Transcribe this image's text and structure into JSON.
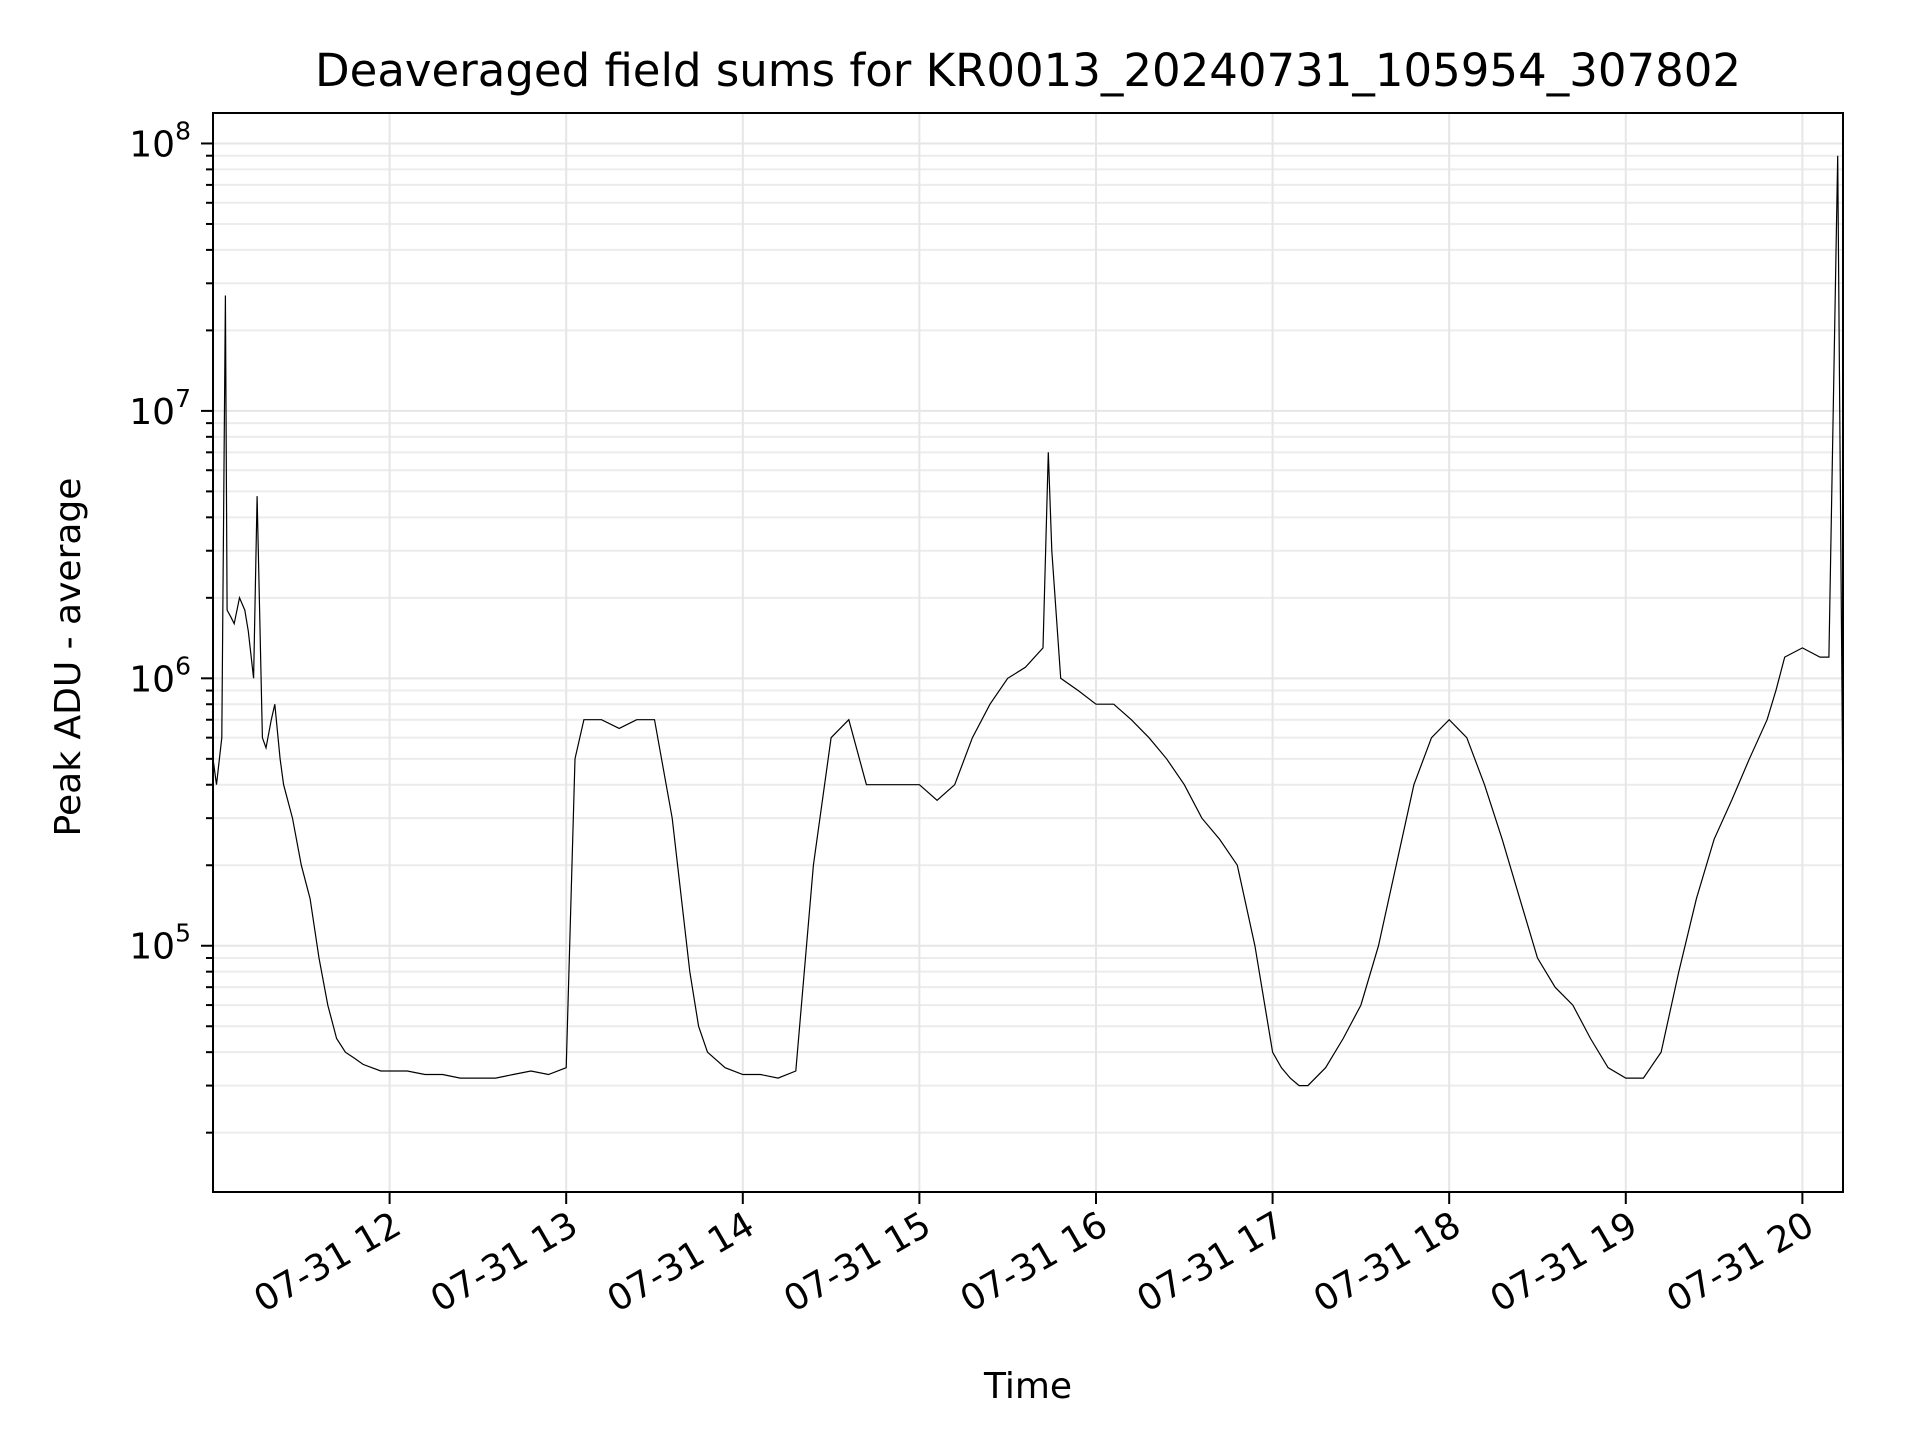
{
  "chart_data": {
    "type": "line",
    "title": "Deaveraged field sums for KR0013_20240731_105954_307802",
    "xlabel": "Time",
    "ylabel": "Peak ADU - average",
    "yscale": "log",
    "ylim": [
      12000,
      130000000
    ],
    "xlim": [
      11.0,
      20.23
    ],
    "grid": true,
    "x_ticks": [
      {
        "value": 12,
        "label": "07-31 12"
      },
      {
        "value": 13,
        "label": "07-31 13"
      },
      {
        "value": 14,
        "label": "07-31 14"
      },
      {
        "value": 15,
        "label": "07-31 15"
      },
      {
        "value": 16,
        "label": "07-31 16"
      },
      {
        "value": 17,
        "label": "07-31 17"
      },
      {
        "value": 18,
        "label": "07-31 18"
      },
      {
        "value": 19,
        "label": "07-31 19"
      },
      {
        "value": 20,
        "label": "07-31 20"
      }
    ],
    "y_ticks": [
      {
        "value": 100000,
        "base": "10",
        "exp": "5"
      },
      {
        "value": 1000000,
        "base": "10",
        "exp": "6"
      },
      {
        "value": 10000000,
        "base": "10",
        "exp": "7"
      },
      {
        "value": 100000000,
        "base": "10",
        "exp": "8"
      }
    ],
    "series_color": "#000000",
    "series": [
      {
        "x_unit": "hour of 2024-07-31",
        "x": [
          11.0,
          11.02,
          11.05,
          11.07,
          11.08,
          11.1,
          11.12,
          11.15,
          11.18,
          11.2,
          11.23,
          11.25,
          11.28,
          11.3,
          11.33,
          11.35,
          11.38,
          11.4,
          11.45,
          11.5,
          11.55,
          11.6,
          11.65,
          11.7,
          11.75,
          11.8,
          11.85,
          11.9,
          11.95,
          12.0,
          12.1,
          12.2,
          12.3,
          12.4,
          12.5,
          12.6,
          12.7,
          12.8,
          12.9,
          13.0,
          13.05,
          13.1,
          13.2,
          13.3,
          13.4,
          13.5,
          13.6,
          13.7,
          13.75,
          13.8,
          13.9,
          14.0,
          14.1,
          14.2,
          14.3,
          14.4,
          14.5,
          14.6,
          14.7,
          14.8,
          14.9,
          15.0,
          15.1,
          15.2,
          15.3,
          15.4,
          15.5,
          15.6,
          15.7,
          15.73,
          15.75,
          15.8,
          15.9,
          16.0,
          16.1,
          16.2,
          16.3,
          16.4,
          16.5,
          16.6,
          16.7,
          16.8,
          16.9,
          17.0,
          17.05,
          17.1,
          17.15,
          17.2,
          17.3,
          17.4,
          17.5,
          17.6,
          17.7,
          17.8,
          17.9,
          18.0,
          18.1,
          18.2,
          18.3,
          18.4,
          18.5,
          18.6,
          18.7,
          18.8,
          18.9,
          19.0,
          19.1,
          19.2,
          19.3,
          19.4,
          19.5,
          19.6,
          19.7,
          19.8,
          19.85,
          19.9,
          20.0,
          20.1,
          20.15,
          20.2,
          20.23
        ],
        "y": [
          500000,
          400000,
          600000,
          27000000,
          1800000,
          1700000,
          1600000,
          2000000,
          1800000,
          1500000,
          1000000,
          4800000,
          600000,
          550000,
          700000,
          800000,
          500000,
          400000,
          300000,
          200000,
          150000,
          90000,
          60000,
          45000,
          40000,
          38000,
          36000,
          35000,
          34000,
          34000,
          34000,
          33000,
          33000,
          32000,
          32000,
          32000,
          33000,
          34000,
          33000,
          35000,
          500000,
          700000,
          700000,
          650000,
          700000,
          700000,
          300000,
          80000,
          50000,
          40000,
          35000,
          33000,
          33000,
          32000,
          34000,
          200000,
          600000,
          700000,
          400000,
          400000,
          400000,
          400000,
          350000,
          400000,
          600000,
          800000,
          1000000,
          1100000,
          1300000,
          7000000,
          3000000,
          1000000,
          900000,
          800000,
          800000,
          700000,
          600000,
          500000,
          400000,
          300000,
          250000,
          200000,
          100000,
          40000,
          35000,
          32000,
          30000,
          30000,
          35000,
          45000,
          60000,
          100000,
          200000,
          400000,
          600000,
          700000,
          600000,
          400000,
          250000,
          150000,
          90000,
          70000,
          60000,
          45000,
          35000,
          32000,
          32000,
          40000,
          80000,
          150000,
          250000,
          350000,
          500000,
          700000,
          900000,
          1200000,
          1300000,
          1200000,
          1200000,
          90000000,
          300000
        ]
      }
    ]
  }
}
